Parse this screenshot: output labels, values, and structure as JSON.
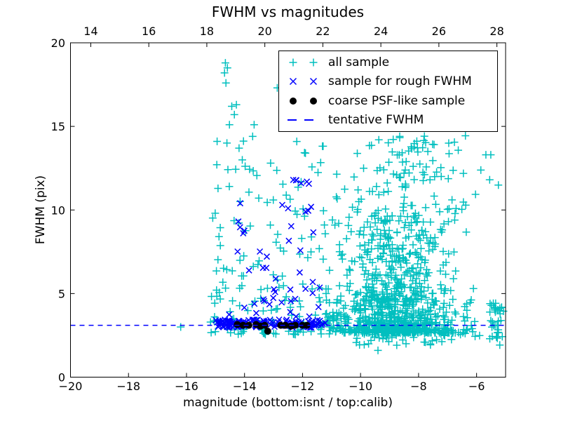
{
  "window": {
    "background": "#ffffff"
  },
  "chart_data": {
    "type": "scatter",
    "title": "FWHM vs magnitudes",
    "xlabel": "magnitude (bottom:isnt / top:calib)",
    "ylabel": "FWHM (pix)",
    "xlim": [
      -20,
      -5
    ],
    "ylim": [
      0,
      20
    ],
    "x_ticks_bottom": [
      -20,
      -18,
      -16,
      -14,
      -12,
      -10,
      -8,
      -6
    ],
    "x_ticks_top": [
      14,
      16,
      18,
      20,
      22,
      24,
      26,
      28
    ],
    "top_axis_offset": 33.3,
    "y_ticks": [
      0,
      5,
      10,
      15,
      20
    ],
    "grid": false,
    "tentative_fwhm": 3.1,
    "frame_color": "#000000",
    "legend": {
      "position": "upper right",
      "entries": [
        {
          "label": "all sample",
          "marker": "plus",
          "color": "#00bfbf"
        },
        {
          "label": "sample for rough FWHM",
          "marker": "cross",
          "color": "#0000ff"
        },
        {
          "label": "coarse PSF-like sample",
          "marker": "dot",
          "color": "#000000"
        },
        {
          "label": "tentative FWHM",
          "marker": "dashes",
          "color": "#0000ff"
        }
      ]
    },
    "series": [
      {
        "name": "all sample",
        "marker": "plus",
        "color": "#00bfbf",
        "seed": 42,
        "clusters": [
          {
            "shape": "uniform",
            "count": 120,
            "x": [
              -15.2,
              -11.0
            ],
            "y": [
              2.55,
              8.5
            ],
            "y_power": 1.9
          },
          {
            "shape": "uniform",
            "count": 42,
            "x": [
              -15.1,
              -11.2
            ],
            "y": [
              8.5,
              14.2
            ],
            "y_power": 1.1
          },
          {
            "shape": "uniform",
            "count": 14,
            "x": [
              -11.6,
              -10.8
            ],
            "y": [
              3.0,
              13.0
            ],
            "y_power": 1.2
          },
          {
            "shape": "gauss",
            "count": 500,
            "x_mean": -8.75,
            "x_sd": 1.1,
            "x_clip": [
              -10.9,
              -5.03
            ],
            "y": [
              2.65,
              4.6
            ],
            "y_power": 2.0
          },
          {
            "shape": "gauss",
            "count": 330,
            "x_mean": -8.85,
            "x_sd": 1.05,
            "x_clip": [
              -10.9,
              -5.03
            ],
            "y": [
              4.6,
              9.5
            ],
            "y_power": 1.6
          },
          {
            "shape": "gauss",
            "count": 115,
            "x_mean": -8.5,
            "x_sd": 1.4,
            "x_clip": [
              -10.6,
              -5.05
            ],
            "y": [
              9.5,
              14.5
            ],
            "y_power": 1.2
          },
          {
            "shape": "uniform",
            "count": 45,
            "x": [
              -10.2,
              -5.05
            ],
            "y": [
              1.9,
              2.65
            ],
            "y_power": 0.8
          },
          {
            "shape": "uniform",
            "count": 35,
            "x": [
              -11.5,
              -10.4
            ],
            "y": [
              2.8,
              3.9
            ],
            "y_power": 1.4
          },
          {
            "shape": "uniform",
            "count": 30,
            "x": [
              -5.55,
              -5.02
            ],
            "y": [
              2.4,
              4.5
            ],
            "y_power": 1.3
          }
        ],
        "points": [
          [
            -16.2,
            3.0
          ],
          [
            -14.66,
            18.8
          ],
          [
            -14.59,
            18.5
          ],
          [
            -14.69,
            18.2
          ],
          [
            -14.64,
            17.6
          ],
          [
            -12.87,
            17.3
          ],
          [
            -14.28,
            16.3
          ],
          [
            -14.44,
            16.2
          ],
          [
            -14.35,
            15.7
          ],
          [
            -14.52,
            15.1
          ],
          [
            -13.67,
            15.1
          ],
          [
            -13.72,
            14.4
          ],
          [
            -12.2,
            14.1
          ],
          [
            -11.9,
            13.4
          ],
          [
            -13.1,
            12.8
          ],
          [
            -9.37,
            14.2
          ],
          [
            -8.65,
            14.4
          ],
          [
            -6.96,
            14.0
          ],
          [
            -7.68,
            13.5
          ],
          [
            -5.51,
            13.3
          ],
          [
            -9.4,
            1.6
          ]
        ]
      },
      {
        "name": "sample for rough FWHM",
        "marker": "cross",
        "color": "#0000ff",
        "seed": 7,
        "clusters": [
          {
            "shape": "uniform",
            "count": 38,
            "x": [
              -14.6,
              -11.3
            ],
            "y": [
              3.6,
              9.8
            ],
            "y_power": 1.3
          },
          {
            "shape": "uniform",
            "count": 6,
            "x": [
              -12.7,
              -11.6
            ],
            "y": [
              9.8,
              12.0
            ],
            "y_power": 1.0
          },
          {
            "shape": "uniform",
            "count": 130,
            "x": [
              -15.0,
              -11.2
            ],
            "y": [
              2.95,
              3.45
            ],
            "y_power": 1.0
          }
        ],
        "points": [
          [
            -12.32,
            11.8
          ],
          [
            -12.05,
            11.6
          ],
          [
            -12.7,
            10.3
          ],
          [
            -12.5,
            10.1
          ],
          [
            -14.15,
            10.4
          ],
          [
            -11.9,
            9.9
          ]
        ]
      },
      {
        "name": "coarse PSF-like sample",
        "marker": "dot",
        "color": "#000000",
        "seed": 3,
        "clusters": [],
        "points": [
          [
            -14.25,
            3.15
          ],
          [
            -14.05,
            3.1
          ],
          [
            -13.85,
            3.1
          ],
          [
            -13.6,
            3.15
          ],
          [
            -13.45,
            3.05
          ],
          [
            -13.3,
            3.1
          ],
          [
            -13.2,
            2.75
          ],
          [
            -12.75,
            3.1
          ],
          [
            -12.6,
            3.1
          ],
          [
            -12.4,
            3.05
          ],
          [
            -12.25,
            3.1
          ],
          [
            -12.0,
            3.1
          ],
          [
            -11.85,
            3.1
          ]
        ]
      }
    ]
  }
}
